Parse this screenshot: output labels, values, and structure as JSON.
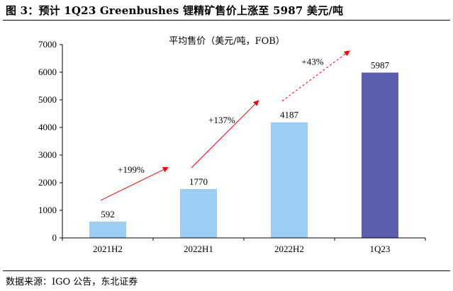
{
  "figure": {
    "title": "图 3：预计 1Q23 Greenbushes 锂精矿售价上涨至 5987 美元/吨",
    "source": "数据来源：IGO 公告，东北证券"
  },
  "colors": {
    "bar_light": "#9ecdf3",
    "bar_dark": "#5c5fb0",
    "arrow": "#ff0000",
    "axis": "#000000"
  },
  "chart_data": {
    "type": "bar",
    "title": "平均售价（美元/吨，FOB）",
    "xlabel": "",
    "ylabel": "",
    "categories": [
      "2021H2",
      "2022H1",
      "2022H2",
      "1Q23"
    ],
    "values": [
      592,
      1770,
      4187,
      5987
    ],
    "value_labels": [
      "592",
      "1770",
      "4187",
      "5987"
    ],
    "ylim": [
      0,
      7000
    ],
    "yticks": [
      0,
      1000,
      2000,
      3000,
      4000,
      5000,
      6000,
      7000
    ],
    "grid": false,
    "legend": "none",
    "annotations": [
      {
        "label": "+199%",
        "from": 0,
        "to": 1,
        "style": "solid"
      },
      {
        "label": "+137%",
        "from": 1,
        "to": 2,
        "style": "solid"
      },
      {
        "label": "+43%",
        "from": 2,
        "to": 3,
        "style": "dashed"
      }
    ]
  }
}
